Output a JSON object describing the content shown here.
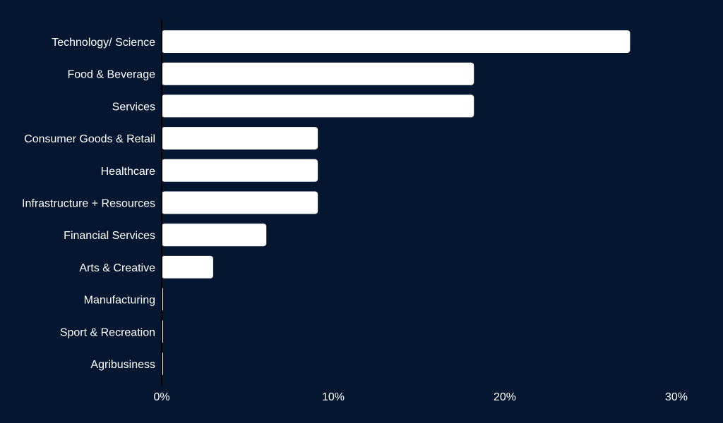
{
  "colors": {
    "background": "#041630",
    "bar": "#ffffff",
    "text": "#ffffff",
    "axis": "#000000"
  },
  "chart_data": {
    "type": "bar",
    "orientation": "horizontal",
    "title": "",
    "xlabel": "",
    "ylabel": "",
    "categories": [
      "Technology/ Science",
      "Food & Beverage",
      "Services",
      "Consumer Goods & Retail",
      "Healthcare",
      "Infrastructure + Resources",
      "Financial Services",
      "Arts & Creative",
      "Manufacturing",
      "Sport & Recreation",
      "Agribusiness"
    ],
    "values": [
      27.3,
      18.2,
      18.2,
      9.1,
      9.1,
      9.1,
      6.1,
      3.0,
      0,
      0,
      0
    ],
    "xlim": [
      0,
      30
    ],
    "x_ticks": [
      0,
      10,
      20,
      30
    ],
    "x_tick_labels": [
      "0%",
      "10%",
      "20%",
      "30%"
    ],
    "grid": false,
    "legend": "none"
  }
}
